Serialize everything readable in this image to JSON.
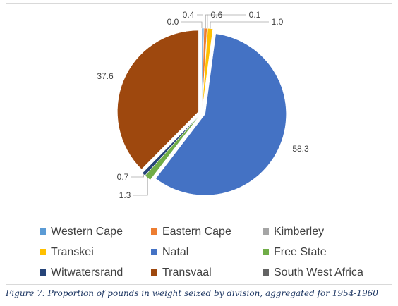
{
  "chart_data": {
    "type": "pie",
    "categories": [
      "Western Cape",
      "Eastern Cape",
      "Kimberley",
      "Transkei",
      "Natal",
      "Free State",
      "Witwatersrand",
      "Transvaal",
      "South West Africa"
    ],
    "values": [
      0.4,
      0.6,
      0.1,
      1.0,
      58.3,
      1.3,
      0.7,
      37.6,
      0.0
    ],
    "data_labels": [
      "0.4",
      "0.6",
      "0.1",
      "1.0",
      "58.3",
      "1.3",
      "0.7",
      "37.6",
      "0.0"
    ],
    "colors": [
      "#5b9bd5",
      "#ed7d31",
      "#a5a5a5",
      "#ffc000",
      "#4472c4",
      "#70ad47",
      "#264478",
      "#9e480e",
      "#636363"
    ],
    "exploded": true,
    "start_angle_deg": 0,
    "legend_position": "bottom",
    "title": ""
  },
  "caption": "Figure 7: Proportion of pounds in weight seized by division, aggregated for 1954-1960"
}
